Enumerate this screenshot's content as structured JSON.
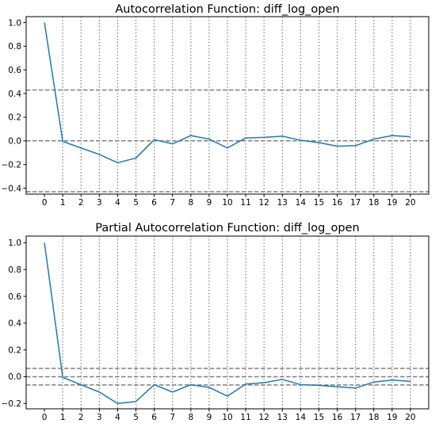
{
  "chart_data": [
    {
      "type": "line",
      "title": "Autocorrelation Function: diff_log_open",
      "xlabel": "",
      "ylabel": "",
      "x": [
        0,
        1,
        2,
        3,
        4,
        5,
        6,
        7,
        8,
        9,
        10,
        11,
        12,
        13,
        14,
        15,
        16,
        17,
        18,
        19,
        20
      ],
      "x_ticks": [
        "0",
        "1",
        "2",
        "3",
        "4",
        "5",
        "6",
        "7",
        "8",
        "9",
        "10",
        "11",
        "12",
        "13",
        "14",
        "15",
        "16",
        "17",
        "18",
        "19",
        "20"
      ],
      "y_ticks": [
        "1.0",
        "0.8",
        "0.6",
        "0.4",
        "0.2",
        "0.0",
        "−0.2",
        "−0.4"
      ],
      "y_tick_values": [
        1.0,
        0.8,
        0.6,
        0.4,
        0.2,
        0.0,
        -0.2,
        -0.4
      ],
      "series": [
        {
          "values": [
            1.0,
            -0.005,
            -0.06,
            -0.115,
            -0.185,
            -0.145,
            0.01,
            -0.025,
            0.045,
            0.015,
            -0.06,
            0.025,
            0.03,
            0.04,
            0.005,
            -0.015,
            -0.045,
            -0.04,
            0.015,
            0.045,
            0.035
          ]
        }
      ],
      "reference_lines": [
        0.43,
        0.0,
        -0.43
      ],
      "vertical_grid_at": [
        1,
        2,
        3,
        4,
        5,
        6,
        7,
        8,
        9,
        10,
        11,
        12,
        13,
        14,
        15,
        16,
        17,
        18,
        19,
        20
      ],
      "xlim": [
        -1.0,
        21.0
      ],
      "ylim": [
        -0.45,
        1.05
      ],
      "grid": "vertical dotted",
      "legend": "none"
    },
    {
      "type": "line",
      "title": "Partial Autocorrelation Function: diff_log_open",
      "xlabel": "",
      "ylabel": "",
      "x": [
        0,
        1,
        2,
        3,
        4,
        5,
        6,
        7,
        8,
        9,
        10,
        11,
        12,
        13,
        14,
        15,
        16,
        17,
        18,
        19,
        20
      ],
      "x_ticks": [
        "0",
        "1",
        "2",
        "3",
        "4",
        "5",
        "6",
        "7",
        "8",
        "9",
        "10",
        "11",
        "12",
        "13",
        "14",
        "15",
        "16",
        "17",
        "18",
        "19",
        "20"
      ],
      "y_ticks": [
        "1.0",
        "0.8",
        "0.6",
        "0.4",
        "0.2",
        "0.0",
        "−0.2"
      ],
      "y_tick_values": [
        1.0,
        0.8,
        0.6,
        0.4,
        0.2,
        0.0,
        -0.2
      ],
      "series": [
        {
          "values": [
            1.0,
            -0.005,
            -0.06,
            -0.115,
            -0.2,
            -0.185,
            -0.06,
            -0.115,
            -0.06,
            -0.08,
            -0.145,
            -0.055,
            -0.045,
            -0.02,
            -0.06,
            -0.065,
            -0.075,
            -0.085,
            -0.04,
            -0.025,
            -0.035
          ]
        }
      ],
      "reference_lines": [
        0.062,
        0.0,
        -0.062
      ],
      "vertical_grid_at": [
        1,
        2,
        3,
        4,
        5,
        6,
        7,
        8,
        9,
        10,
        11,
        12,
        13,
        14,
        15,
        16,
        17,
        18,
        19,
        20
      ],
      "xlim": [
        -1.0,
        21.0
      ],
      "ylim": [
        -0.24,
        1.05
      ],
      "grid": "vertical dotted",
      "legend": "none"
    }
  ],
  "colors": {
    "series": "#1f77b4",
    "reference": "#808080",
    "grid": "#808080",
    "axes": "#000000"
  }
}
